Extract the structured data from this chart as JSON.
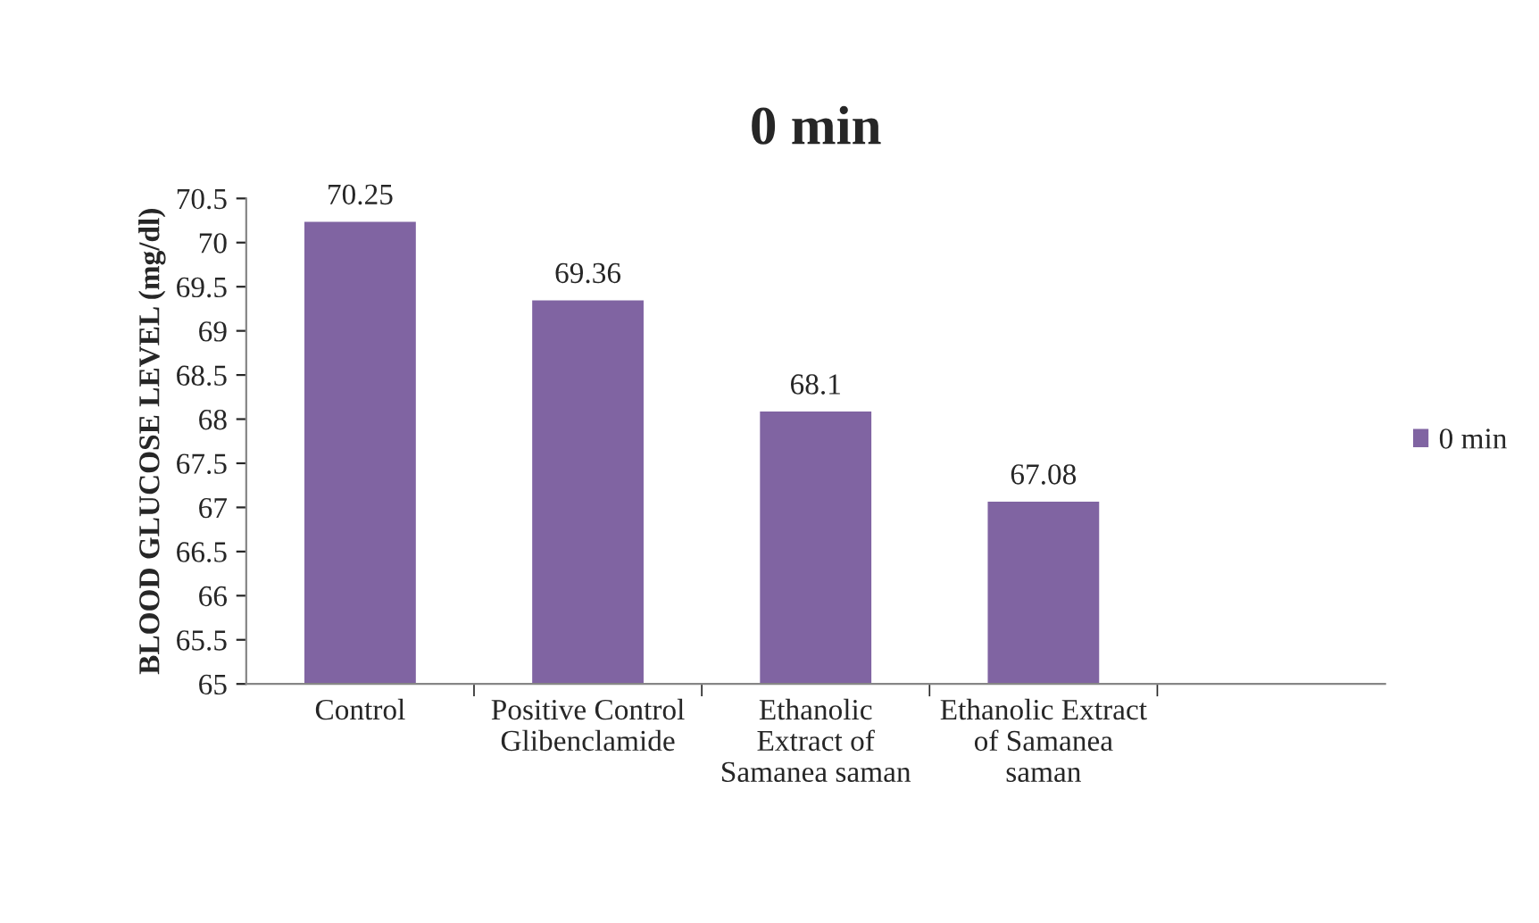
{
  "chart_data": {
    "type": "bar",
    "title": "0 min",
    "ylabel": "BLOOD GLUCOSE LEVEL (mg/dl)",
    "categories": [
      "Control",
      "Positive Control\nGlibenclamide",
      "Ethanolic\nExtract of\nSamanea saman",
      "Ethanolic Extract\nof Samanea\nsaman",
      null
    ],
    "series": [
      {
        "name": "0 min",
        "color": "#8064a2",
        "values": [
          70.25,
          69.36,
          68.1,
          67.08,
          null
        ]
      }
    ],
    "ylim": [
      65,
      70.5
    ],
    "yticks": [
      65,
      65.5,
      66,
      66.5,
      67,
      67.5,
      68,
      68.5,
      69,
      69.5,
      70,
      70.5
    ],
    "data_labels": true,
    "legend": "right",
    "grid": false
  }
}
